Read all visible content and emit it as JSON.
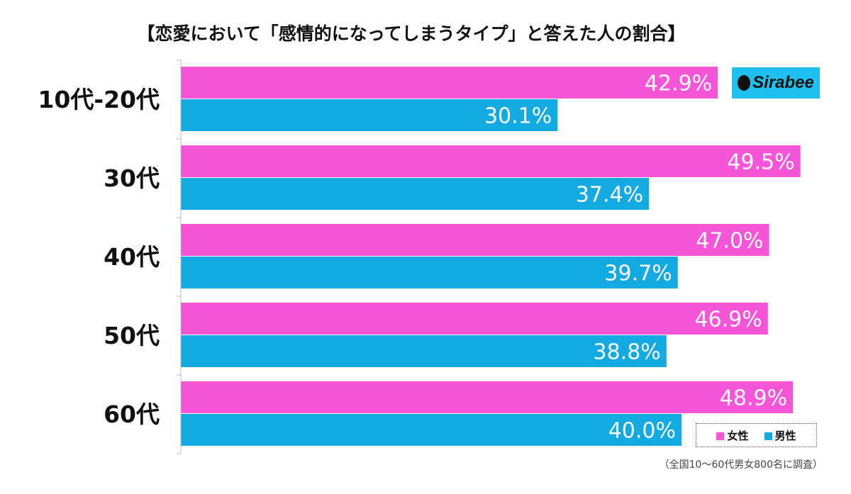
{
  "title": "【恋愛において「感情的になってしまうタイプ」と答えた人の割合】",
  "logo_text": "Sirabee",
  "note": "（全国10～60代男女800名に調査）",
  "colors": {
    "female": "#F655D8",
    "male": "#13A9E1",
    "logo_bg": "#1EC0F0"
  },
  "chart_data": {
    "type": "bar",
    "orientation": "horizontal",
    "categories": [
      "10代-20代",
      "30代",
      "40代",
      "50代",
      "60代"
    ],
    "series": [
      {
        "name": "女性",
        "values": [
          42.9,
          49.5,
          47.0,
          46.9,
          48.9
        ]
      },
      {
        "name": "男性",
        "values": [
          30.1,
          37.4,
          39.7,
          38.8,
          40.0
        ]
      }
    ],
    "value_labels": [
      [
        "42.9%",
        "49.5%",
        "47.0%",
        "46.9%",
        "48.9%"
      ],
      [
        "30.1%",
        "37.4%",
        "39.7%",
        "38.8%",
        "40.0%"
      ]
    ],
    "legend_position": "bottom-right",
    "grid": false
  }
}
